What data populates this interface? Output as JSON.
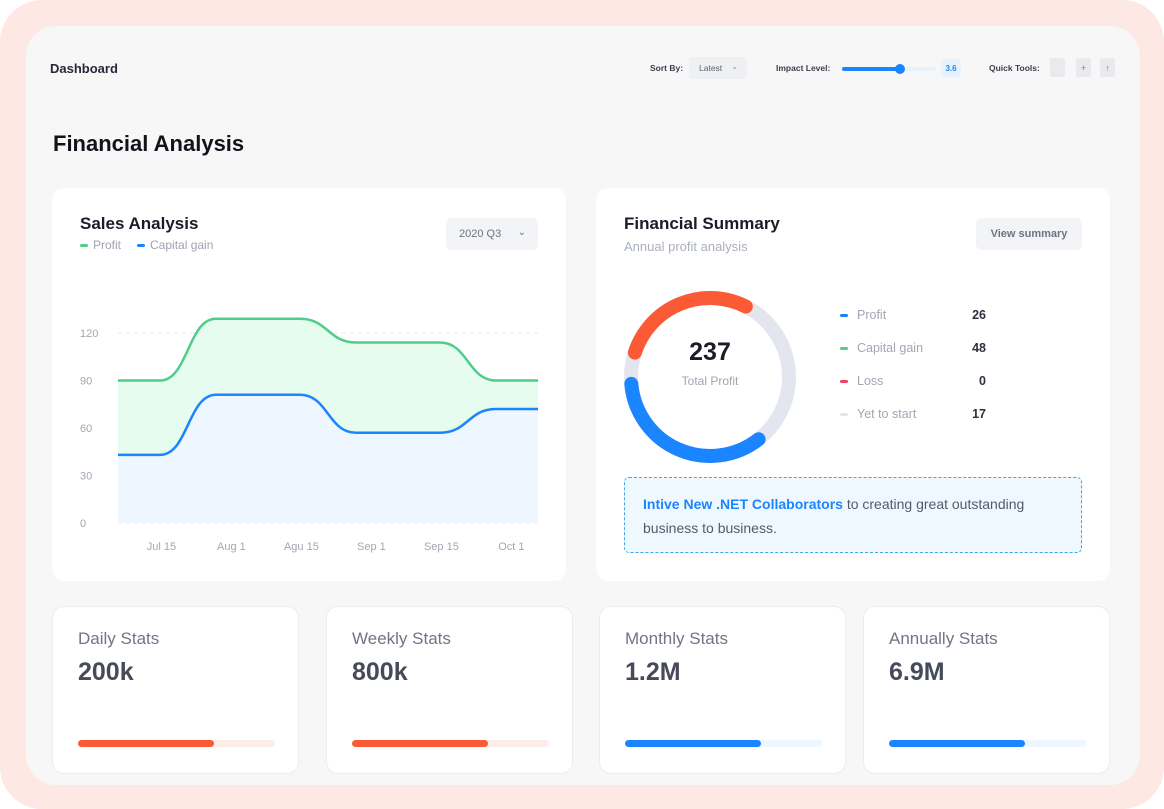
{
  "header": {
    "title": "Dashboard",
    "sort_by_label": "Sort By:",
    "sort_by_value": "Latest",
    "impact_label": "Impact Level:",
    "impact_value": "3.6",
    "impact_level": 0.62,
    "quick_tools_label": "Quick Tools:",
    "quick_tools": [
      {
        "icon": "document-icon",
        "glyph": ""
      },
      {
        "icon": "add-document-icon",
        "glyph": "+"
      },
      {
        "icon": "upload-document-icon",
        "glyph": "↑"
      }
    ]
  },
  "page_title": "Financial Analysis",
  "sales": {
    "title": "Sales Analysis",
    "period": "2020 Q3",
    "legend": [
      {
        "label": "Profit",
        "color": "#50cd89"
      },
      {
        "label": "Capital gain",
        "color": "#1b84ff"
      }
    ]
  },
  "chart_data": {
    "type": "area",
    "x": [
      "Jul 15",
      "Aug 1",
      "Agu 15",
      "Sep 1",
      "Sep 15",
      "Oct 1"
    ],
    "yticks": [
      0,
      30,
      60,
      90,
      120
    ],
    "ylim": [
      0,
      120
    ],
    "grid": true,
    "series": [
      {
        "name": "Profit",
        "color": "#50cd89",
        "fill": "#e6fcef",
        "points": [
          [
            0,
            90
          ],
          [
            0.6,
            90
          ],
          [
            1.4,
            129
          ],
          [
            2.6,
            129
          ],
          [
            3.4,
            114
          ],
          [
            4.6,
            114
          ],
          [
            5.4,
            90
          ],
          [
            6,
            90
          ]
        ]
      },
      {
        "name": "Capital gain",
        "color": "#1b84ff",
        "fill": "#eef6ff",
        "points": [
          [
            0,
            43
          ],
          [
            0.6,
            43
          ],
          [
            1.4,
            81
          ],
          [
            2.6,
            81
          ],
          [
            3.4,
            57
          ],
          [
            4.6,
            57
          ],
          [
            5.4,
            72
          ],
          [
            6,
            72
          ]
        ]
      }
    ]
  },
  "summary": {
    "title": "Financial Summary",
    "subtitle": "Annual profit analysis",
    "view_button": "View summary",
    "total": "237",
    "total_label": "Total Profit",
    "rows": [
      {
        "label": "Profit",
        "value": "26",
        "color": "#1b84ff"
      },
      {
        "label": "Capital gain",
        "value": "48",
        "color": "#50cd89"
      },
      {
        "label": "Loss",
        "value": "0",
        "color": "#f1416c"
      },
      {
        "label": "Yet to start",
        "value": "17",
        "color": "#e4e6ef"
      }
    ],
    "donut": [
      {
        "name": "Blue",
        "color": "#1b84ff",
        "fraction": 0.4
      },
      {
        "name": "Gray",
        "color": "#e4e6ef",
        "fraction": 0.33
      },
      {
        "name": "Orange",
        "color": "#fa5a35",
        "fraction": 0.27
      }
    ],
    "notice_highlight": "Intive New .NET Collaborators",
    "notice_text": " to creating great outstanding business to business."
  },
  "stats": [
    {
      "label": "Daily Stats",
      "value": "200k",
      "progress": 0.69,
      "color": "#fa5a35",
      "track": "#fdeee9"
    },
    {
      "label": "Weekly Stats",
      "value": "800k",
      "progress": 0.69,
      "color": "#fa5a35",
      "track": "#fdeee9"
    },
    {
      "label": "Monthly Stats",
      "value": "1.2M",
      "progress": 0.69,
      "color": "#1b84ff",
      "track": "#eef6ff"
    },
    {
      "label": "Annually Stats",
      "value": "6.9M",
      "progress": 0.69,
      "color": "#1b84ff",
      "track": "#eef6ff"
    }
  ]
}
